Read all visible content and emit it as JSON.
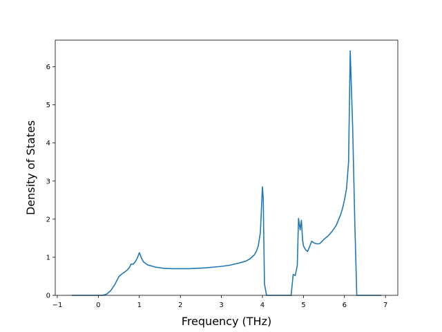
{
  "chart_data": {
    "type": "line",
    "title": "",
    "xlabel": "Frequency (THz)",
    "ylabel": "Density of States",
    "xlim": [
      -1.05,
      7.3
    ],
    "ylim": [
      0,
      6.7
    ],
    "grid": false,
    "xticks": [
      -1,
      0,
      1,
      2,
      3,
      4,
      5,
      6,
      7
    ],
    "yticks": [
      0,
      1,
      2,
      3,
      4,
      5,
      6
    ],
    "series": [
      {
        "color": "#1f77b4",
        "x": [
          -0.65,
          -0.2,
          0.1,
          0.2,
          0.3,
          0.4,
          0.5,
          0.55,
          0.6,
          0.65,
          0.7,
          0.75,
          0.8,
          0.85,
          0.9,
          0.95,
          1.0,
          1.05,
          1.1,
          1.2,
          1.4,
          1.6,
          1.8,
          2.0,
          2.2,
          2.4,
          2.6,
          2.8,
          3.0,
          3.2,
          3.4,
          3.6,
          3.7,
          3.8,
          3.85,
          3.9,
          3.95,
          4.0,
          4.02,
          4.05,
          4.1,
          4.2,
          4.3,
          4.4,
          4.5,
          4.6,
          4.7,
          4.75,
          4.8,
          4.85,
          4.88,
          4.92,
          4.95,
          4.98,
          5.0,
          5.05,
          5.1,
          5.15,
          5.2,
          5.25,
          5.3,
          5.35,
          5.4,
          5.5,
          5.6,
          5.7,
          5.8,
          5.9,
          5.95,
          6.0,
          6.05,
          6.1,
          6.14,
          6.2,
          6.25,
          6.3,
          6.4,
          6.5,
          6.9
        ],
        "y": [
          0,
          0,
          0.0,
          0.03,
          0.12,
          0.28,
          0.49,
          0.54,
          0.58,
          0.62,
          0.66,
          0.72,
          0.82,
          0.82,
          0.88,
          0.98,
          1.12,
          0.98,
          0.88,
          0.8,
          0.74,
          0.71,
          0.7,
          0.7,
          0.7,
          0.71,
          0.72,
          0.74,
          0.76,
          0.79,
          0.84,
          0.9,
          0.96,
          1.06,
          1.15,
          1.3,
          1.65,
          2.85,
          2.55,
          0.3,
          0,
          0,
          0,
          0,
          0,
          0,
          0,
          0.55,
          0.52,
          0.78,
          2.02,
          1.72,
          1.97,
          1.45,
          1.3,
          1.2,
          1.15,
          1.28,
          1.42,
          1.38,
          1.36,
          1.35,
          1.36,
          1.47,
          1.56,
          1.68,
          1.84,
          2.1,
          2.27,
          2.5,
          2.8,
          3.5,
          6.42,
          4.4,
          2.0,
          0,
          0,
          0,
          0
        ]
      }
    ]
  }
}
